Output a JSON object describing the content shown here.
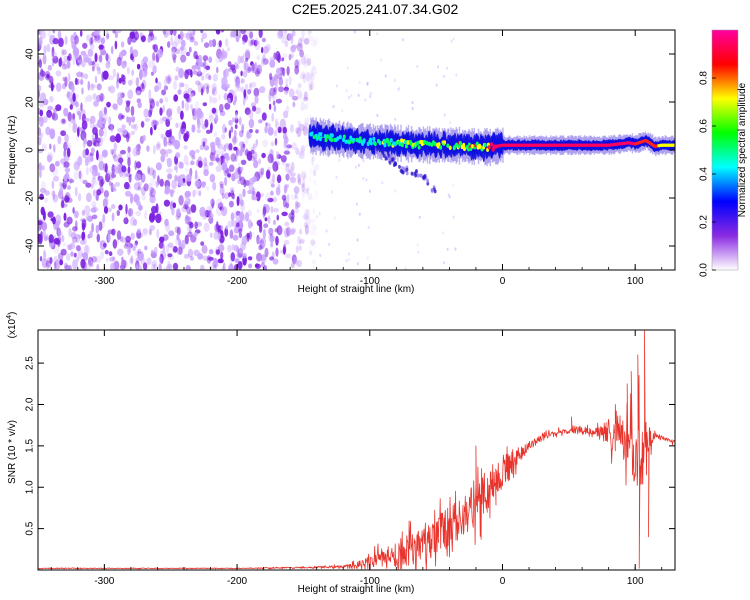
{
  "figure_title": "C2E5.2025.241.07.34.G02",
  "chart_data": [
    {
      "type": "heatmap",
      "title": "C2E5.2025.241.07.34.G02",
      "xlabel": "Height of straight line (km)",
      "ylabel": "Frequency (Hz)",
      "xlim": [
        -350,
        130
      ],
      "ylim": [
        -50,
        50
      ],
      "x_ticks": [
        -300,
        -200,
        -100,
        0,
        100
      ],
      "x_tick_labels": [
        "-300",
        "-200",
        "-100",
        "0",
        "100"
      ],
      "y_ticks": [
        -40,
        -20,
        0,
        20,
        40
      ],
      "y_tick_labels": [
        "-40",
        "-20",
        "0",
        "20",
        "40"
      ],
      "colorbar": {
        "label": "Normalized spectral amplitude",
        "range": [
          0,
          1
        ],
        "ticks": [
          0.0,
          0.2,
          0.4,
          0.6,
          0.8
        ],
        "tick_labels": [
          "0.0",
          "0.2",
          "0.4",
          "0.6",
          "0.8"
        ],
        "colors": [
          "#ffffff",
          "#8a2be2",
          "#0000ff",
          "#00ffff",
          "#00ff00",
          "#ffff00",
          "#ff0000",
          "#ff00a0"
        ]
      },
      "noise_region_x": [
        -350,
        -140
      ],
      "ridge": {
        "x": [
          -145,
          -130,
          -115,
          -100,
          -85,
          -70,
          -55,
          -40,
          -25,
          -15,
          -10,
          0,
          20,
          40,
          60,
          80,
          95,
          100,
          108,
          115,
          120,
          130
        ],
        "freq_hz": [
          6,
          5,
          4,
          3.5,
          3,
          2.5,
          2,
          2,
          1.5,
          1.5,
          1,
          2,
          2,
          2,
          2,
          2,
          3,
          2.5,
          4,
          1.5,
          2,
          2
        ],
        "amplitude": [
          0.35,
          0.4,
          0.45,
          0.45,
          0.5,
          0.55,
          0.6,
          0.6,
          0.65,
          0.7,
          0.75,
          0.95,
          0.95,
          0.95,
          0.95,
          0.95,
          0.9,
          0.85,
          0.8,
          0.8,
          0.7,
          0.6
        ]
      },
      "branch": {
        "x": [
          -95,
          -85,
          -75,
          -65,
          -58,
          -50
        ],
        "freq_hz": [
          0,
          -4,
          -8,
          -10,
          -12,
          -18
        ]
      }
    },
    {
      "type": "line",
      "xlabel": "Height of straight line (km)",
      "ylabel": "SNR (10 * v/v)",
      "y_scale_label": "(x10",
      "y_scale_exponent": "4",
      "y_scale_close": ")",
      "xlim": [
        -350,
        130
      ],
      "ylim": [
        0,
        2.9
      ],
      "x_ticks": [
        -300,
        -200,
        -100,
        0,
        100
      ],
      "x_tick_labels": [
        "-300",
        "-200",
        "-100",
        "0",
        "100"
      ],
      "y_ticks": [
        0.5,
        1.0,
        1.5,
        2.0,
        2.5
      ],
      "y_tick_labels": [
        "0.5",
        "1.0",
        "1.5",
        "2.0",
        "2.5"
      ],
      "series": [
        {
          "name": "SNR",
          "color": "#e8342c",
          "x": [
            -350,
            -300,
            -250,
            -200,
            -150,
            -120,
            -110,
            -100,
            -90,
            -80,
            -70,
            -60,
            -50,
            -40,
            -30,
            -20,
            -10,
            0,
            10,
            20,
            30,
            40,
            50,
            60,
            70,
            80,
            90,
            95,
            100,
            105,
            110,
            115,
            120,
            125,
            130
          ],
          "mean": [
            0.02,
            0.02,
            0.02,
            0.02,
            0.03,
            0.04,
            0.06,
            0.1,
            0.15,
            0.2,
            0.25,
            0.32,
            0.42,
            0.52,
            0.65,
            0.8,
            0.95,
            1.15,
            1.35,
            1.5,
            1.6,
            1.65,
            1.68,
            1.68,
            1.66,
            1.65,
            1.6,
            1.55,
            1.5,
            1.4,
            1.6,
            1.62,
            1.6,
            1.57,
            1.55
          ],
          "jitter": [
            0.005,
            0.005,
            0.005,
            0.005,
            0.01,
            0.02,
            0.06,
            0.08,
            0.15,
            0.2,
            0.25,
            0.3,
            0.32,
            0.3,
            0.3,
            0.35,
            0.3,
            0.25,
            0.15,
            0.08,
            0.05,
            0.04,
            0.04,
            0.05,
            0.06,
            0.2,
            0.3,
            0.4,
            0.6,
            0.6,
            0.2,
            0.05,
            0.03,
            0.03,
            0.03
          ],
          "spikes": [
            {
              "x": -20,
              "y": 1.5
            },
            {
              "x": -5,
              "y": 1.22
            },
            {
              "x": 52,
              "y": 1.85
            },
            {
              "x": 78,
              "y": 1.6
            },
            {
              "x": 85,
              "y": 2.0
            },
            {
              "x": 94,
              "y": 2.25
            },
            {
              "x": 97,
              "y": 2.4
            },
            {
              "x": 102,
              "y": 2.6
            },
            {
              "x": 103,
              "y": 0.02
            },
            {
              "x": 107,
              "y": 2.9
            },
            {
              "x": 110,
              "y": 0.4
            }
          ]
        }
      ]
    }
  ]
}
